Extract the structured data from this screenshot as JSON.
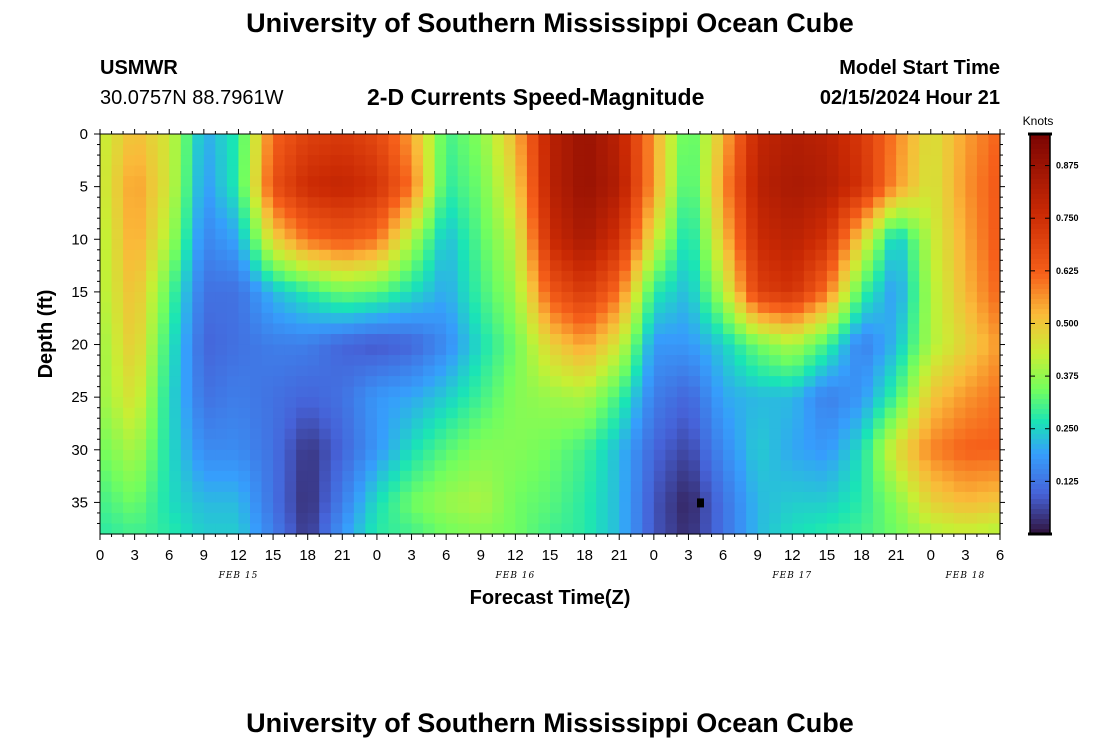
{
  "header": {
    "title": "University of Southern Mississippi Ocean Cube",
    "station": "USMWR",
    "coords": "30.0757N  88.7961W",
    "model_start_label": "Model Start Time",
    "model_start_value": "02/15/2024 Hour 21",
    "bottom_title": "University of Southern Mississippi Ocean Cube"
  },
  "chart_data": {
    "type": "heatmap",
    "title": "2-D Currents Speed-Magnitude",
    "xlabel": "Forecast Time(Z)",
    "ylabel": "Depth (ft)",
    "x_tick_labels": [
      "0",
      "3",
      "6",
      "9",
      "12",
      "15",
      "18",
      "21",
      "0",
      "3",
      "6",
      "9",
      "12",
      "15",
      "18",
      "21",
      "0",
      "3",
      "6",
      "9",
      "12",
      "15",
      "18",
      "21",
      "0",
      "3",
      "6"
    ],
    "x_date_labels": [
      {
        "label": "FEB 15",
        "at_tick": 4
      },
      {
        "label": "FEB 16",
        "at_tick": 12
      },
      {
        "label": "FEB 17",
        "at_tick": 20
      },
      {
        "label": "FEB 18",
        "at_tick": 25
      }
    ],
    "y_ticks": [
      0,
      5,
      10,
      15,
      20,
      25,
      30,
      35
    ],
    "y_range": [
      0,
      38
    ],
    "y_inverted": true,
    "colorbar": {
      "units": "Knots",
      "range": [
        0,
        0.95
      ],
      "ticks": [
        0.125,
        0.25,
        0.375,
        0.5,
        0.625,
        0.75,
        0.875
      ],
      "tick_labels": [
        "0.125",
        "0.250",
        "0.375",
        "0.500",
        "0.625",
        "0.750",
        "0.875"
      ]
    },
    "depth_rows": [
      0,
      5,
      10,
      15,
      20,
      25,
      30,
      35,
      38
    ],
    "hour_cols": [
      0,
      3,
      6,
      9,
      12,
      15,
      18,
      21,
      24,
      27,
      30,
      33,
      36,
      39,
      42,
      45,
      48,
      51,
      54,
      57,
      60,
      63,
      66,
      69,
      72,
      75,
      78
    ],
    "values": [
      [
        0.42,
        0.52,
        0.44,
        0.2,
        0.28,
        0.62,
        0.7,
        0.72,
        0.68,
        0.55,
        0.3,
        0.36,
        0.52,
        0.8,
        0.88,
        0.8,
        0.55,
        0.3,
        0.52,
        0.78,
        0.82,
        0.8,
        0.72,
        0.58,
        0.45,
        0.55,
        0.62
      ],
      [
        0.42,
        0.56,
        0.44,
        0.18,
        0.28,
        0.66,
        0.76,
        0.78,
        0.74,
        0.6,
        0.28,
        0.34,
        0.48,
        0.8,
        0.88,
        0.82,
        0.55,
        0.28,
        0.56,
        0.8,
        0.84,
        0.82,
        0.74,
        0.56,
        0.44,
        0.56,
        0.64
      ],
      [
        0.4,
        0.55,
        0.4,
        0.15,
        0.2,
        0.48,
        0.6,
        0.64,
        0.6,
        0.4,
        0.22,
        0.32,
        0.42,
        0.76,
        0.84,
        0.74,
        0.45,
        0.24,
        0.5,
        0.76,
        0.8,
        0.74,
        0.48,
        0.22,
        0.42,
        0.54,
        0.64
      ],
      [
        0.4,
        0.52,
        0.32,
        0.12,
        0.12,
        0.22,
        0.28,
        0.34,
        0.32,
        0.26,
        0.2,
        0.3,
        0.38,
        0.64,
        0.72,
        0.6,
        0.28,
        0.22,
        0.4,
        0.7,
        0.74,
        0.6,
        0.3,
        0.18,
        0.4,
        0.52,
        0.62
      ],
      [
        0.38,
        0.5,
        0.28,
        0.1,
        0.12,
        0.14,
        0.14,
        0.1,
        0.08,
        0.1,
        0.16,
        0.26,
        0.34,
        0.48,
        0.55,
        0.44,
        0.18,
        0.18,
        0.24,
        0.34,
        0.4,
        0.3,
        0.14,
        0.22,
        0.4,
        0.48,
        0.56
      ],
      [
        0.38,
        0.46,
        0.26,
        0.12,
        0.14,
        0.12,
        0.1,
        0.12,
        0.18,
        0.2,
        0.24,
        0.3,
        0.36,
        0.38,
        0.4,
        0.3,
        0.14,
        0.1,
        0.2,
        0.22,
        0.22,
        0.14,
        0.18,
        0.3,
        0.5,
        0.56,
        0.6
      ],
      [
        0.34,
        0.4,
        0.26,
        0.16,
        0.16,
        0.12,
        0.04,
        0.1,
        0.18,
        0.26,
        0.32,
        0.36,
        0.36,
        0.34,
        0.3,
        0.22,
        0.1,
        0.06,
        0.16,
        0.24,
        0.2,
        0.18,
        0.26,
        0.46,
        0.58,
        0.62,
        0.62
      ],
      [
        0.3,
        0.34,
        0.26,
        0.22,
        0.22,
        0.12,
        0.03,
        0.14,
        0.26,
        0.34,
        0.38,
        0.4,
        0.34,
        0.32,
        0.28,
        0.22,
        0.08,
        0.02,
        0.12,
        0.22,
        0.24,
        0.24,
        0.28,
        0.36,
        0.48,
        0.52,
        0.5
      ],
      [
        0.28,
        0.3,
        0.28,
        0.24,
        0.24,
        0.14,
        0.04,
        0.18,
        0.28,
        0.3,
        0.34,
        0.36,
        0.34,
        0.3,
        0.28,
        0.22,
        0.08,
        0.03,
        0.12,
        0.22,
        0.26,
        0.28,
        0.3,
        0.34,
        0.4,
        0.42,
        0.4
      ]
    ],
    "marker": {
      "hour": 52,
      "depth": 35
    }
  }
}
